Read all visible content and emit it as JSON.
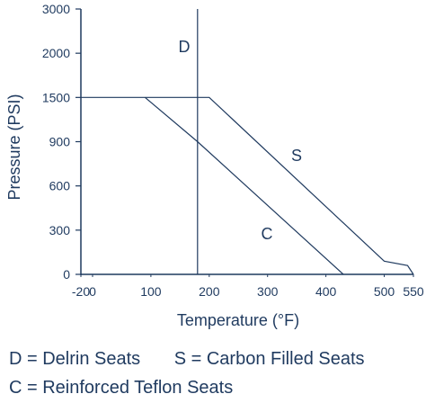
{
  "chart_data": {
    "type": "line",
    "xlabel": "Temperature (°F)",
    "ylabel": "Pressure (PSI)",
    "x_ticks": [
      -20,
      0,
      100,
      200,
      300,
      400,
      500,
      550
    ],
    "y_ticks": [
      "0",
      "300",
      "600",
      "900",
      "1500",
      "2000",
      "3000"
    ],
    "xlim": [
      -20,
      550
    ],
    "grid": false,
    "series": [
      {
        "name": "D",
        "label": "D",
        "points": [
          [
            180,
            0
          ],
          [
            180,
            3000
          ]
        ]
      },
      {
        "name": "S",
        "label": "S",
        "points": [
          [
            -20,
            1500
          ],
          [
            200,
            1500
          ],
          [
            500,
            90
          ],
          [
            540,
            60
          ],
          [
            550,
            0
          ]
        ]
      },
      {
        "name": "C",
        "label": "C",
        "points": [
          [
            90,
            1500
          ],
          [
            180,
            900
          ],
          [
            430,
            0
          ]
        ]
      }
    ],
    "legend": {
      "d": "D = Delrin Seats",
      "s": "S = Carbon Filled Seats",
      "c": "C = Reinforced Teflon Seats"
    },
    "colors": {
      "text": "#1f3a5f",
      "line": "#1f3a5f"
    }
  }
}
